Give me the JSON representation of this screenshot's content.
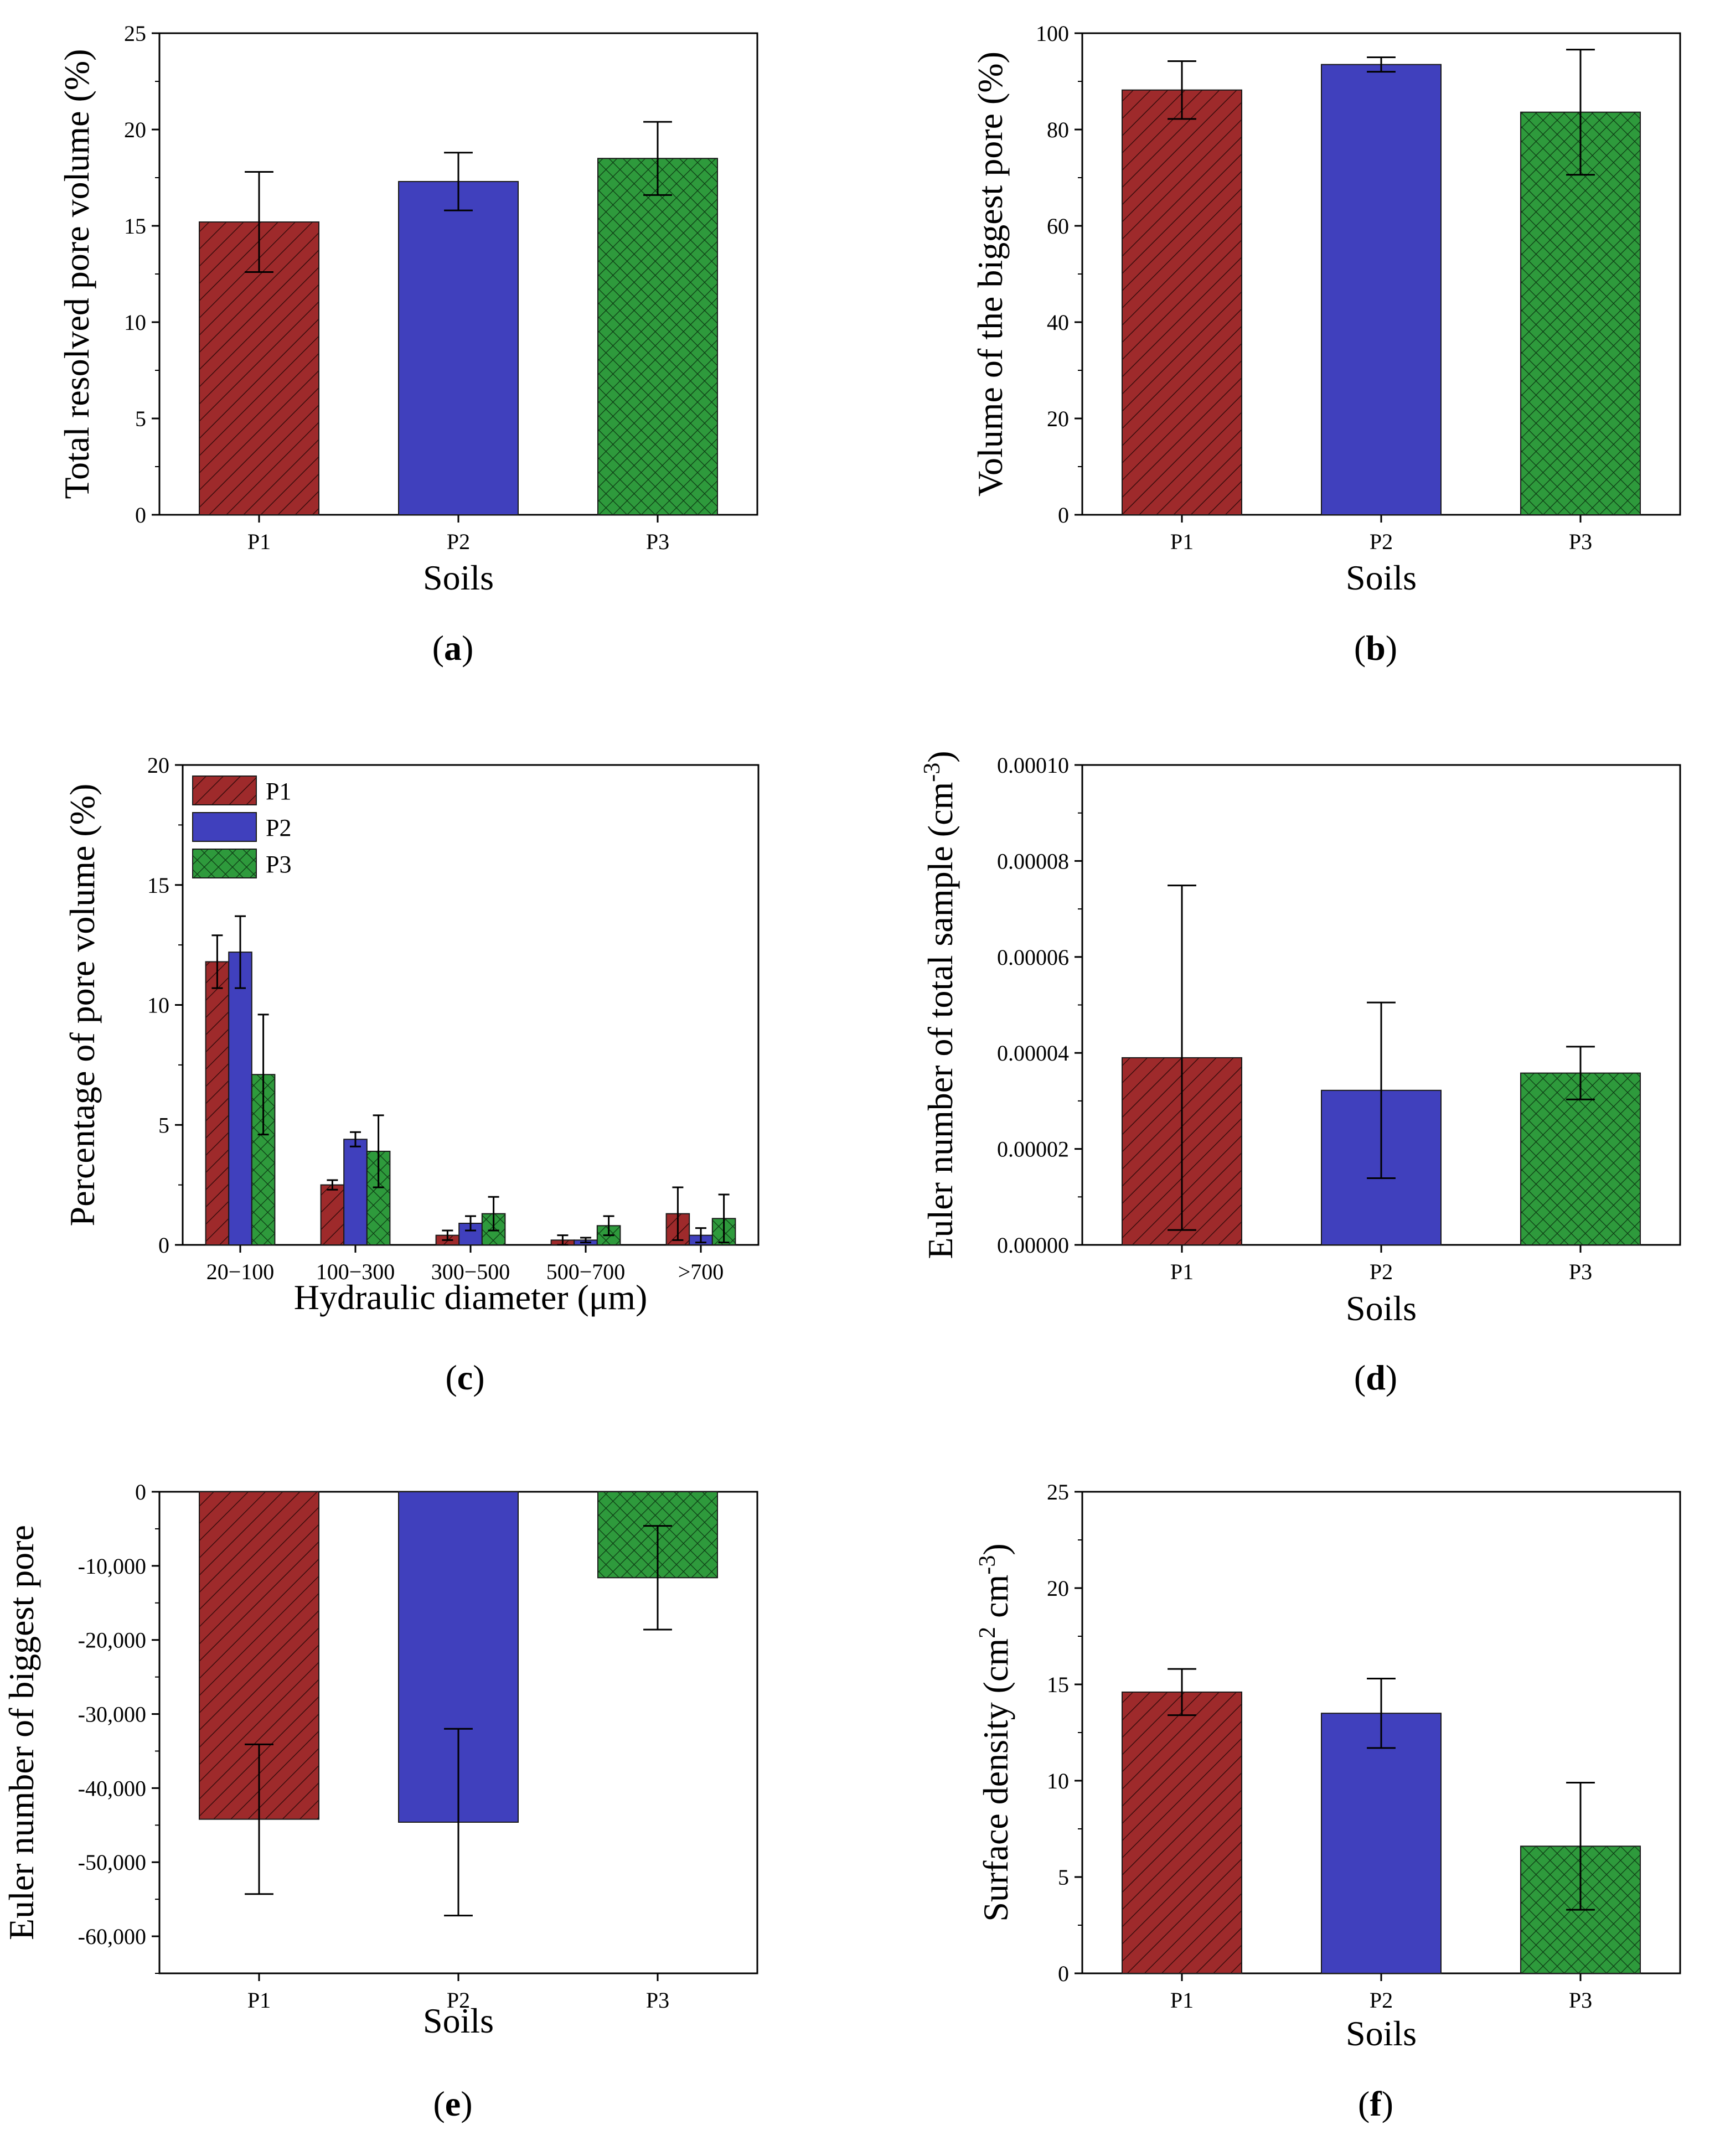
{
  "figure": {
    "colors": {
      "P1": "#9e2a2b",
      "P2": "#4040bd",
      "P3": "#2e9a3c"
    },
    "panels": [
      {
        "id": "a",
        "panel_label": "a"
      },
      {
        "id": "b",
        "panel_label": "b"
      },
      {
        "id": "c",
        "panel_label": "c"
      },
      {
        "id": "d",
        "panel_label": "d"
      },
      {
        "id": "e",
        "panel_label": "e"
      },
      {
        "id": "f",
        "panel_label": "f"
      }
    ]
  },
  "chart_data": [
    {
      "id": "a",
      "type": "bar",
      "xlabel": "Soils",
      "ylabel": "Total resolved pore volume (%)",
      "categories": [
        "P1",
        "P2",
        "P3"
      ],
      "values": [
        15.2,
        17.3,
        18.5
      ],
      "errors": [
        2.6,
        1.5,
        1.9
      ],
      "ylim": [
        0,
        25
      ],
      "yticks": [
        0,
        5,
        10,
        15,
        20,
        25
      ],
      "ytick_labels": [
        "0",
        "5",
        "10",
        "15",
        "20",
        "25"
      ]
    },
    {
      "id": "b",
      "type": "bar",
      "xlabel": "Soils",
      "ylabel": "Volume of the biggest pore (%)",
      "categories": [
        "P1",
        "P2",
        "P3"
      ],
      "values": [
        88.2,
        93.5,
        83.6
      ],
      "errors": [
        6.0,
        1.5,
        13.0
      ],
      "ylim": [
        0,
        100
      ],
      "yticks": [
        0,
        20,
        40,
        60,
        80,
        100
      ],
      "ytick_labels": [
        "0",
        "20",
        "40",
        "60",
        "80",
        "100"
      ]
    },
    {
      "id": "c",
      "type": "bar",
      "xlabel": "Hydraulic diameter (μm)",
      "ylabel": "Percentage of pore volume (%)",
      "categories": [
        "20−100",
        "100−300",
        "300−500",
        "500−700",
        ">700"
      ],
      "series": [
        {
          "name": "P1",
          "values": [
            11.8,
            2.5,
            0.4,
            0.2,
            1.3
          ],
          "errors": [
            1.1,
            0.2,
            0.2,
            0.2,
            1.1
          ]
        },
        {
          "name": "P2",
          "values": [
            12.2,
            4.4,
            0.9,
            0.2,
            0.4
          ],
          "errors": [
            1.5,
            0.3,
            0.3,
            0.1,
            0.3
          ]
        },
        {
          "name": "P3",
          "values": [
            7.1,
            3.9,
            1.3,
            0.8,
            1.1
          ],
          "errors": [
            2.5,
            1.5,
            0.7,
            0.4,
            1.0
          ]
        }
      ],
      "legend": [
        "P1",
        "P2",
        "P3"
      ],
      "legend_position": "top-left",
      "ylim": [
        0,
        20
      ],
      "yticks": [
        0,
        5,
        10,
        15,
        20
      ],
      "ytick_labels": [
        "0",
        "5",
        "10",
        "15",
        "20"
      ]
    },
    {
      "id": "d",
      "type": "bar",
      "xlabel": "Soils",
      "ylabel": "Euler number of total sample (cm",
      "ylabel_sup": "-3",
      "ylabel_end": ")",
      "categories": [
        "P1",
        "P2",
        "P3"
      ],
      "values": [
        3.9e-05,
        3.22e-05,
        3.58e-05
      ],
      "errors": [
        3.59e-05,
        1.83e-05,
        5.5e-06
      ],
      "ylim": [
        0,
        0.0001
      ],
      "yticks": [
        0,
        2e-05,
        4e-05,
        6e-05,
        8e-05,
        0.0001
      ],
      "ytick_labels": [
        "0.00000",
        "0.00002",
        "0.00004",
        "0.00006",
        "0.00008",
        "0.00010"
      ]
    },
    {
      "id": "e",
      "type": "bar",
      "xlabel": "Soils",
      "ylabel": "Euler number of biggest pore",
      "categories": [
        "P1",
        "P2",
        "P3"
      ],
      "values": [
        -44200,
        -44600,
        -11600
      ],
      "errors": [
        10100,
        12600,
        7000
      ],
      "ylim": [
        -65000,
        0
      ],
      "yticks": [
        0,
        -10000,
        -20000,
        -30000,
        -40000,
        -50000,
        -60000
      ],
      "ytick_labels": [
        "0",
        "-10,000",
        "-20,000",
        "-30,000",
        "-40,000",
        "-50,000",
        "-60,000"
      ]
    },
    {
      "id": "f",
      "type": "bar",
      "xlabel": "Soils",
      "ylabel": "Surface density (cm",
      "ylabel_mid": "2",
      "ylabel_mid_after": " cm",
      "ylabel_sup": "-3",
      "ylabel_end": ")",
      "categories": [
        "P1",
        "P2",
        "P3"
      ],
      "values": [
        14.6,
        13.5,
        6.6
      ],
      "errors": [
        1.2,
        1.8,
        3.3
      ],
      "ylim": [
        0,
        25
      ],
      "yticks": [
        0,
        5,
        10,
        15,
        20,
        25
      ],
      "ytick_labels": [
        "0",
        "5",
        "10",
        "15",
        "20",
        "25"
      ]
    }
  ]
}
